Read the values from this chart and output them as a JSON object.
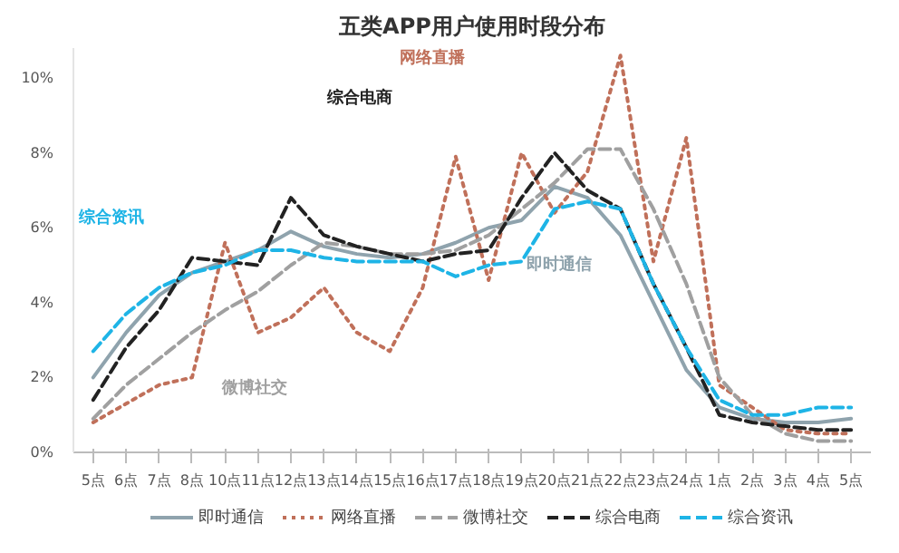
{
  "chart_data": {
    "type": "line",
    "title": "五类APP用户使用时段分布",
    "categories": [
      "5点",
      "6点",
      "7点",
      "8点",
      "10点",
      "11点",
      "12点",
      "13点",
      "14点",
      "15点",
      "16点",
      "17点",
      "18点",
      "19点",
      "20点",
      "21点",
      "22点",
      "23点",
      "24点",
      "1点",
      "2点",
      "3点",
      "4点",
      "5点"
    ],
    "series": [
      {
        "name": "即时通信",
        "color": "#8fa3ad",
        "line_style": "solid",
        "values": [
          2.0,
          3.2,
          4.2,
          4.8,
          5.1,
          5.4,
          5.9,
          5.5,
          5.3,
          5.2,
          5.3,
          5.6,
          6.0,
          6.2,
          7.1,
          6.8,
          5.8,
          4.0,
          2.2,
          1.2,
          0.9,
          0.8,
          0.8,
          0.9
        ]
      },
      {
        "name": "网络直播",
        "color": "#c0705a",
        "line_style": "dotted",
        "values": [
          0.8,
          1.3,
          1.8,
          2.0,
          5.6,
          3.2,
          3.6,
          4.4,
          3.2,
          2.7,
          4.4,
          7.9,
          4.6,
          8.0,
          6.4,
          7.5,
          10.6,
          5.1,
          8.4,
          1.8,
          1.2,
          0.6,
          0.5,
          0.5
        ]
      },
      {
        "name": "微博社交",
        "color": "#a0a0a0",
        "line_style": "dashed",
        "values": [
          0.9,
          1.8,
          2.5,
          3.2,
          3.8,
          4.3,
          5.0,
          5.6,
          5.5,
          5.3,
          5.3,
          5.4,
          5.8,
          6.5,
          7.2,
          8.1,
          8.1,
          6.5,
          4.5,
          2.0,
          1.0,
          0.5,
          0.3,
          0.3
        ]
      },
      {
        "name": "综合电商",
        "color": "#222222",
        "line_style": "dashed",
        "values": [
          1.4,
          2.8,
          3.8,
          5.2,
          5.1,
          5.0,
          6.8,
          5.8,
          5.5,
          5.3,
          5.1,
          5.3,
          5.4,
          6.8,
          8.0,
          7.0,
          6.5,
          4.5,
          2.8,
          1.0,
          0.8,
          0.7,
          0.6,
          0.6
        ]
      },
      {
        "name": "综合资讯",
        "color": "#1eb4e6",
        "line_style": "dashed",
        "values": [
          2.7,
          3.7,
          4.4,
          4.8,
          5.0,
          5.4,
          5.4,
          5.2,
          5.1,
          5.1,
          5.1,
          4.7,
          5.0,
          5.1,
          6.5,
          6.7,
          6.5,
          4.5,
          2.8,
          1.4,
          1.0,
          1.0,
          1.2,
          1.2
        ]
      }
    ],
    "ylim": [
      0,
      10.8
    ],
    "yticks": [
      {
        "value": 0,
        "label": "0%"
      },
      {
        "value": 2,
        "label": "2%"
      },
      {
        "value": 4,
        "label": "4%"
      },
      {
        "value": 6,
        "label": "6%"
      },
      {
        "value": 8,
        "label": "8%"
      },
      {
        "value": 10,
        "label": "10%"
      }
    ],
    "grid": false,
    "legend": "bottom",
    "annotations": [
      "综合电商",
      "网络直播",
      "即时通信",
      "综合资讯",
      "微博社交"
    ]
  }
}
